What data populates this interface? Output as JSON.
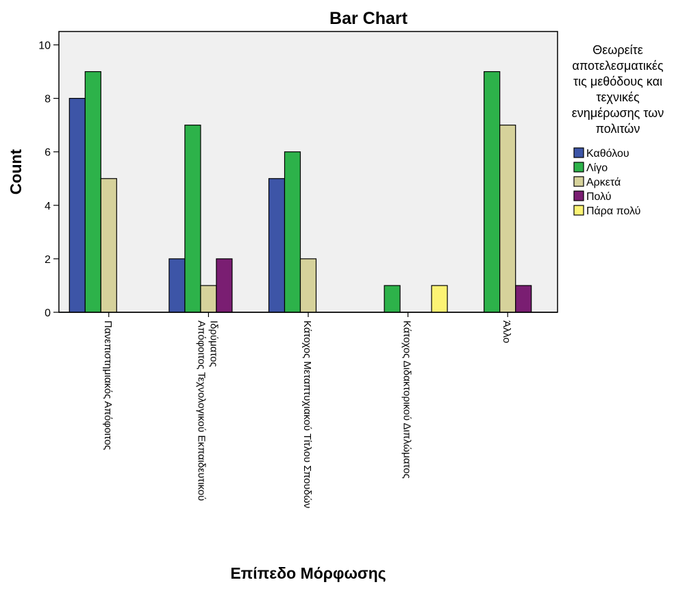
{
  "chart_data": {
    "type": "bar",
    "title": "Bar Chart",
    "xlabel": "Επίπεδο Μόρφωσης",
    "ylabel": "Count",
    "ylim": [
      0,
      10.5
    ],
    "yticks": [
      0,
      2,
      4,
      6,
      8,
      10
    ],
    "grid": false,
    "legend_placement": "right",
    "legend_title": [
      "Θεωρείτε",
      "αποτελεσματικές",
      "τις μεθόδους και",
      "τεχνικές",
      "ενημέρωσης των",
      "πολιτών"
    ],
    "categories": [
      [
        "Πανεπιστημιακός Απόφοιτος"
      ],
      [
        "Απόφοιτος Τεχνολογικού Εκπαιδευτικού",
        "Ιδρύματος"
      ],
      [
        "Κάτοχος Μεταπτυχιακού Τίτλου Σπουδών"
      ],
      [
        "Κάτοχος Διδακτορικού Διπλώματος"
      ],
      [
        "Άλλο"
      ]
    ],
    "series": [
      {
        "name": "Καθόλου",
        "color": "#3D55A7",
        "values": [
          8,
          2,
          5,
          null,
          null
        ]
      },
      {
        "name": "Λίγο",
        "color": "#2DB24A",
        "values": [
          9,
          7,
          6,
          1,
          9
        ]
      },
      {
        "name": "Αρκετά",
        "color": "#D6D29B",
        "values": [
          5,
          1,
          2,
          null,
          7
        ]
      },
      {
        "name": "Πολύ",
        "color": "#7A1E72",
        "values": [
          null,
          2,
          null,
          null,
          1
        ]
      },
      {
        "name": "Πάρα πολύ",
        "color": "#FCF374",
        "values": [
          null,
          null,
          null,
          1,
          null
        ]
      }
    ],
    "plot_background": "#F0F0F0"
  }
}
